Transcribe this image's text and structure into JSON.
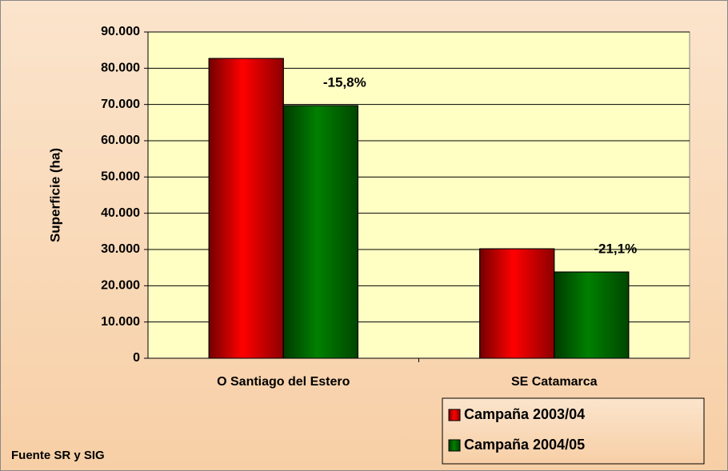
{
  "chart_data": {
    "type": "bar",
    "y_label": "Superficie (ha)",
    "categories": [
      "O Santiago del Estero",
      "SE Catamarca"
    ],
    "series": [
      {
        "name": "Campaña 2003/04",
        "color": "#ff0000",
        "values": [
          82700,
          30200
        ]
      },
      {
        "name": "Campaña 2004/05",
        "color": "#008000",
        "values": [
          69700,
          23800
        ]
      }
    ],
    "annotations": [
      "-15,8%",
      "-21,1%"
    ],
    "source": "Fuente SR y SIG",
    "ylim": [
      0,
      90000
    ],
    "yticks": [
      0,
      {
        "value": 10000,
        "label": "10.000"
      },
      {
        "value": 20000,
        "label": "20.000"
      },
      {
        "value": 30000,
        "label": "30.000"
      },
      {
        "value": 40000,
        "label": "40.000"
      },
      {
        "value": 50000,
        "label": "50.000"
      },
      {
        "value": 60000,
        "label": "60.000"
      },
      {
        "value": 70000,
        "label": "70.000"
      },
      {
        "value": 80000,
        "label": "80.000"
      },
      {
        "value": 90000,
        "label": "90.000"
      }
    ],
    "grid": true,
    "legend_position": "bottom-right"
  }
}
